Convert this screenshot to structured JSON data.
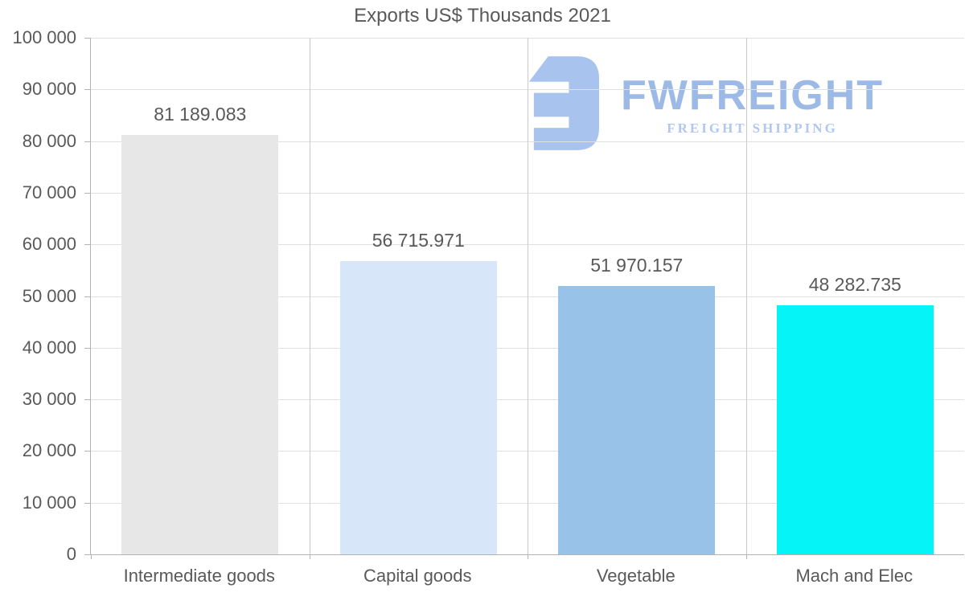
{
  "title": "Exports US$ Thousands 2021",
  "logo": {
    "brand": "FWFREIGHT",
    "tagline": "FREIGHT SHIPPING",
    "icon": "fwfreight-monogram-icon",
    "icon_color": "#a9c3ef",
    "brand_color": "#9db9e6",
    "tagline_color": "#b2c7ee"
  },
  "chart_data": {
    "type": "bar",
    "title": "Exports US$ Thousands 2021",
    "categories": [
      "Intermediate goods",
      "Capital goods",
      "Vegetable",
      "Mach and Elec"
    ],
    "values": [
      81189.083,
      56715.971,
      51970.157,
      48282.735
    ],
    "value_labels": [
      "81 189.083",
      "56 715.971",
      "51 970.157",
      "48 282.735"
    ],
    "bar_colors": [
      "#e7e7e7",
      "#d7e7f9",
      "#98c2e8",
      "#05f4f8"
    ],
    "xlabel": "",
    "ylabel": "",
    "ylim": [
      0,
      100000
    ],
    "ytick_step": 10000,
    "ytick_labels": [
      "0",
      "10 000",
      "20 000",
      "30 000",
      "40 000",
      "50 000",
      "60 000",
      "70 000",
      "80 000",
      "90 000",
      "100 000"
    ],
    "grid": "horizontal gridlines + vertical category separators",
    "legend": "none",
    "text_color": "#595959",
    "gridline_color": "#e0e0e0",
    "separator_color": "#c9c9c9",
    "axis_color": "#b3b3b3"
  }
}
